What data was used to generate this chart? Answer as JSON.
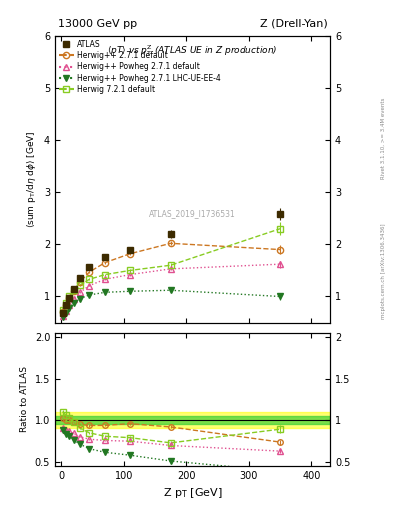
{
  "title_left": "13000 GeV pp",
  "title_right": "Z (Drell-Yan)",
  "plot_title": "<pT> vs p_{T}^{Z} (ATLAS UE in Z production)",
  "ylabel_main": "<sum p_{T}/d#eta d#phi> [GeV]",
  "ylabel_ratio": "Ratio to ATLAS",
  "xlabel": "Z p_{T} [GeV]",
  "watermark": "ATLAS_2019_I1736531",
  "rivet_label": "Rivet 3.1.10, >= 3.4M events",
  "mcplots_label": "mcplots.cern.ch [arXiv:1306.3436]",
  "atlas_x": [
    2,
    7,
    13,
    20,
    30,
    45,
    70,
    110,
    175,
    350
  ],
  "atlas_y": [
    0.68,
    0.83,
    0.97,
    1.14,
    1.35,
    1.57,
    1.76,
    1.9,
    2.2,
    2.58
  ],
  "atlas_yerr": [
    0.02,
    0.02,
    0.02,
    0.02,
    0.03,
    0.03,
    0.04,
    0.05,
    0.07,
    0.12
  ],
  "herwig_default_x": [
    2,
    7,
    13,
    20,
    30,
    45,
    70,
    110,
    175,
    350
  ],
  "herwig_default_y": [
    0.7,
    0.83,
    0.97,
    1.11,
    1.28,
    1.47,
    1.65,
    1.82,
    2.02,
    1.9
  ],
  "herwig_default_yerr": [
    0.01,
    0.01,
    0.01,
    0.01,
    0.01,
    0.02,
    0.02,
    0.03,
    0.04,
    0.08
  ],
  "herwig_powheg_default_x": [
    2,
    7,
    13,
    20,
    30,
    45,
    70,
    110,
    175,
    350
  ],
  "herwig_powheg_default_y": [
    0.62,
    0.73,
    0.84,
    0.96,
    1.08,
    1.21,
    1.33,
    1.42,
    1.53,
    1.62
  ],
  "herwig_powheg_default_yerr": [
    0.01,
    0.01,
    0.01,
    0.01,
    0.01,
    0.01,
    0.02,
    0.02,
    0.03,
    0.07
  ],
  "herwig_powheg_lhc_x": [
    2,
    7,
    13,
    20,
    30,
    45,
    70,
    110,
    175,
    350
  ],
  "herwig_powheg_lhc_y": [
    0.6,
    0.69,
    0.78,
    0.87,
    0.96,
    1.03,
    1.08,
    1.1,
    1.12,
    1.0
  ],
  "herwig_powheg_lhc_yerr": [
    0.01,
    0.01,
    0.01,
    0.01,
    0.01,
    0.01,
    0.01,
    0.02,
    0.03,
    0.06
  ],
  "herwig7_default_x": [
    2,
    7,
    13,
    20,
    30,
    45,
    70,
    110,
    175,
    350
  ],
  "herwig7_default_y": [
    0.75,
    0.88,
    1.0,
    1.12,
    1.22,
    1.33,
    1.42,
    1.5,
    1.6,
    2.3
  ],
  "herwig7_default_yerr": [
    0.01,
    0.01,
    0.01,
    0.01,
    0.01,
    0.02,
    0.02,
    0.03,
    0.04,
    0.12
  ],
  "color_atlas": "#3d2b00",
  "color_herwig_default": "#cc7722",
  "color_herwig_powheg": "#e05090",
  "color_herwig_lhc": "#227722",
  "color_herwig7": "#88cc22",
  "ylim_main": [
    0.5,
    6.0
  ],
  "ylim_ratio": [
    0.45,
    2.05
  ],
  "xlim": [
    -10,
    430
  ],
  "band_yellow_lo": 0.9,
  "band_yellow_hi": 1.1,
  "band_green_lo": 0.95,
  "band_green_hi": 1.05
}
